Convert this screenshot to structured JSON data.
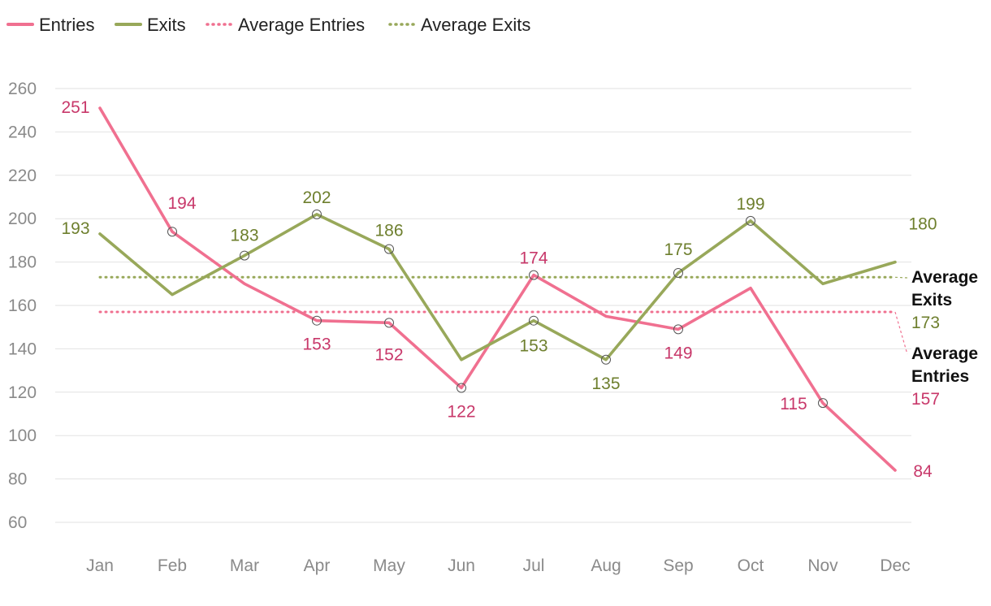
{
  "chart_data": {
    "type": "line",
    "categories": [
      "Jan",
      "Feb",
      "Mar",
      "Apr",
      "May",
      "Jun",
      "Jul",
      "Aug",
      "Sep",
      "Oct",
      "Nov",
      "Dec"
    ],
    "series": [
      {
        "name": "Entries",
        "values": [
          251,
          194,
          170,
          153,
          152,
          122,
          174,
          155,
          149,
          168,
          115,
          84
        ],
        "labeled": [
          0,
          1,
          3,
          4,
          5,
          6,
          8,
          10,
          11
        ],
        "markers": [
          1,
          3,
          4,
          5,
          6,
          8,
          10
        ],
        "color": "#f07090",
        "label_color": "#c8386a"
      },
      {
        "name": "Exits",
        "values": [
          193,
          165,
          183,
          202,
          186,
          135,
          153,
          135,
          175,
          199,
          170,
          180
        ],
        "labeled": [
          0,
          2,
          3,
          4,
          6,
          7,
          8,
          9,
          11
        ],
        "markers": [
          2,
          3,
          4,
          6,
          7,
          8,
          9
        ],
        "color": "#98a85a",
        "label_color": "#6e7f2e"
      }
    ],
    "averages": [
      {
        "name": "Average Entries",
        "value": 157,
        "end_label": "Average Entries",
        "value_label": "157",
        "color": "#f07090",
        "label_color": "#c8386a"
      },
      {
        "name": "Average Exits",
        "value": 173,
        "end_label": "Average Exits",
        "value_label": "173",
        "color": "#98a85a",
        "label_color": "#6e7f2e"
      }
    ],
    "ylim": [
      60,
      260
    ],
    "yticks": [
      60,
      80,
      100,
      120,
      140,
      160,
      180,
      200,
      220,
      240,
      260
    ],
    "grid": true,
    "legend": "top-left",
    "title": "",
    "xlabel": "",
    "ylabel": ""
  },
  "legend": {
    "items": [
      {
        "label": "Entries",
        "style": "solid",
        "color": "#f07090"
      },
      {
        "label": "Exits",
        "style": "solid",
        "color": "#98a85a"
      },
      {
        "label": "Average Entries",
        "style": "dotted",
        "color": "#f07090"
      },
      {
        "label": "Average Exits",
        "style": "dotted",
        "color": "#98a85a"
      }
    ]
  }
}
